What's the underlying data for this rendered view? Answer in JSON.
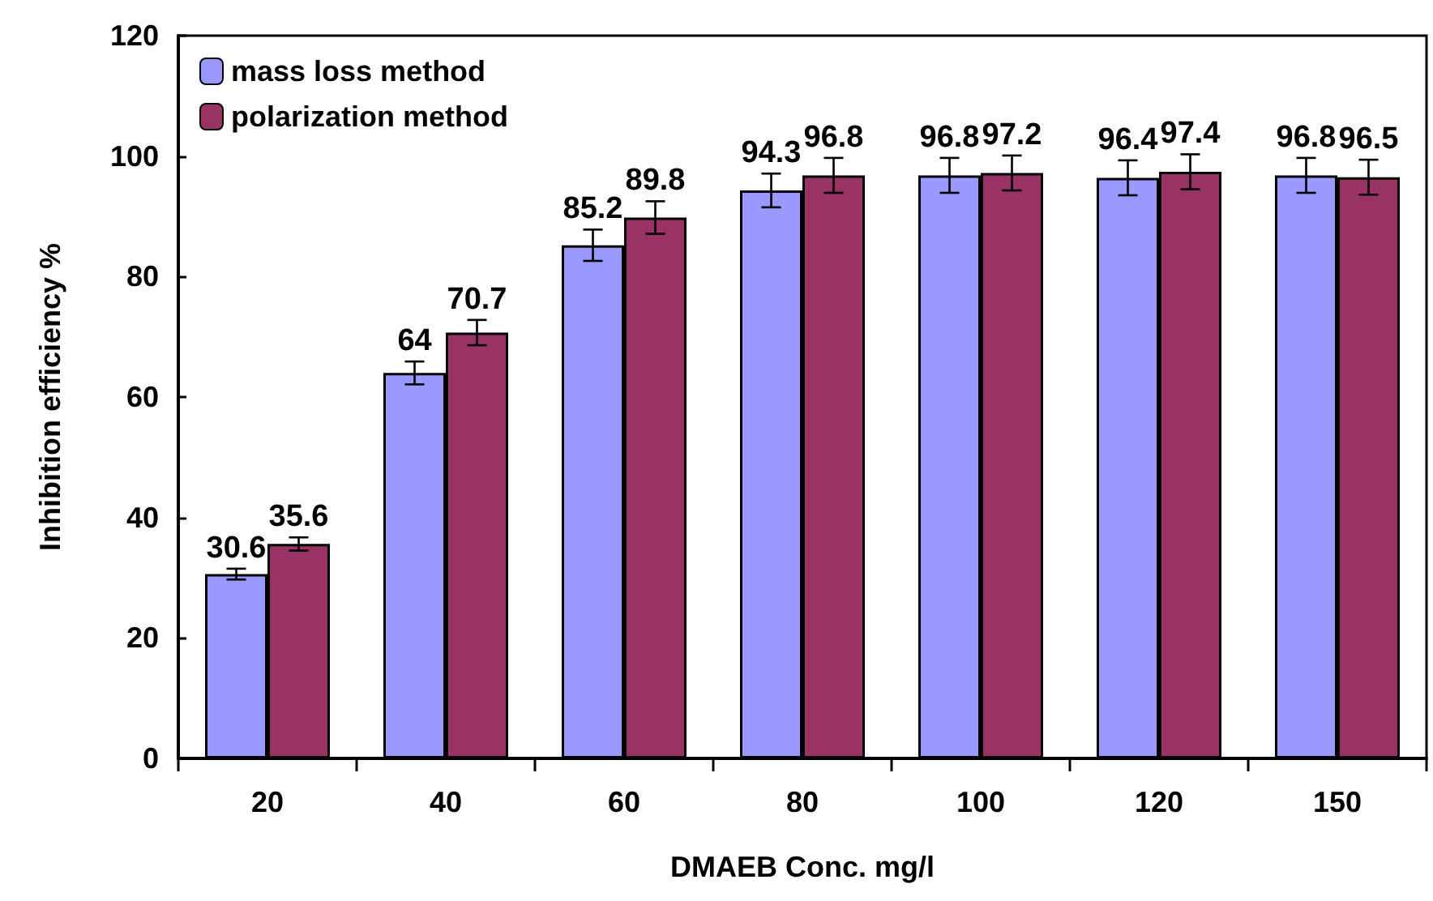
{
  "chart_data": {
    "type": "bar",
    "xlabel": "DMAEB Conc. mg/l",
    "ylabel": "Inhibition efficiency %",
    "categories": [
      "20",
      "40",
      "60",
      "80",
      "100",
      "120",
      "150"
    ],
    "series": [
      {
        "name": "mass loss method",
        "color": "#9999ff",
        "values": [
          30.6,
          64,
          85.2,
          94.3,
          96.8,
          96.4,
          96.8
        ],
        "errors": [
          0.9,
          1.9,
          2.6,
          2.8,
          2.9,
          2.9,
          2.9
        ]
      },
      {
        "name": "polarization method",
        "color": "#993366",
        "values": [
          35.6,
          70.7,
          89.8,
          96.8,
          97.2,
          97.4,
          96.5
        ],
        "errors": [
          1.1,
          2.1,
          2.7,
          2.9,
          2.9,
          2.9,
          2.9
        ]
      }
    ],
    "ylim": [
      0,
      120
    ],
    "yticks": [
      0,
      20,
      40,
      60,
      80,
      100,
      120
    ],
    "data_labels": true,
    "legend": "top left",
    "grid": false
  }
}
